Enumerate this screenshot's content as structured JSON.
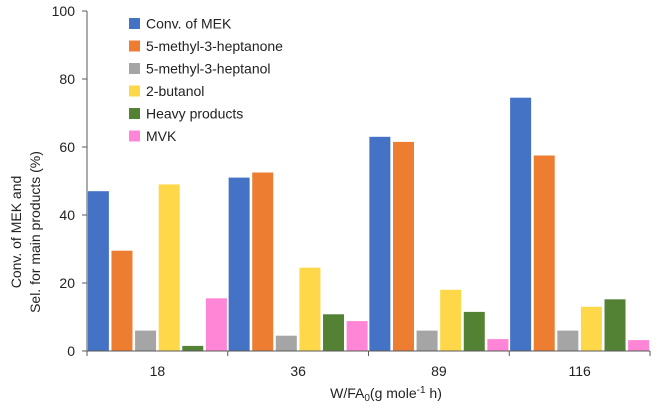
{
  "chart_data": {
    "type": "bar",
    "categories": [
      "18",
      "36",
      "89",
      "116"
    ],
    "series": [
      {
        "name": "Conv. of MEK",
        "color": "#4472C4",
        "values": [
          47,
          51,
          63,
          74.5
        ]
      },
      {
        "name": "5-methyl-3-heptanone",
        "color": "#ED7D31",
        "values": [
          29.5,
          52.5,
          61.5,
          57.5
        ]
      },
      {
        "name": "5-methyl-3-heptanol",
        "color": "#A5A5A5",
        "values": [
          6,
          4.5,
          6,
          6
        ]
      },
      {
        "name": "2-butanol",
        "color": "#FFD84A",
        "values": [
          49,
          24.5,
          18,
          13
        ]
      },
      {
        "name": "Heavy products",
        "color": "#548235",
        "values": [
          1.5,
          10.8,
          11.5,
          15.2
        ]
      },
      {
        "name": "MVK",
        "color": "#FF85D6",
        "values": [
          15.5,
          8.8,
          3.5,
          3.2
        ]
      }
    ],
    "xlabel": {
      "prefix": "W/FA",
      "subscript": "0",
      "middle": "(g mole",
      "superscript": "-1",
      "suffix": " h)"
    },
    "ylabel": [
      "Conv. of MEK and",
      "Sel. for main products (%)"
    ],
    "ylim": [
      0,
      100
    ],
    "yticks": [
      0,
      20,
      40,
      60,
      80,
      100
    ],
    "grid": false,
    "legend_position": "top-left"
  }
}
